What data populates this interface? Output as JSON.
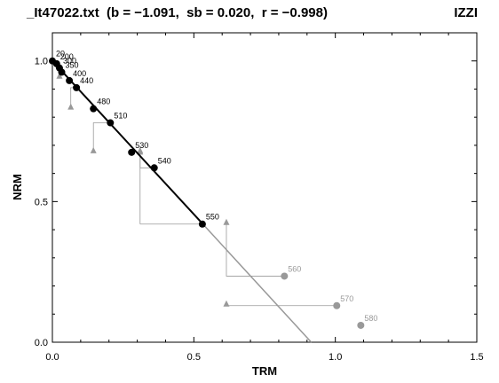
{
  "chart_data": {
    "type": "scatter",
    "title": "_It47022.txt  (b = −1.091,  sb = 0.020,  r = −0.998)",
    "method": "IZZI",
    "xlabel": "TRM",
    "ylabel": "NRM",
    "xlim": [
      0,
      1.5
    ],
    "ylim": [
      0,
      1.1
    ],
    "xticks": [
      0.0,
      0.5,
      1.0,
      1.5
    ],
    "xtick_labels": [
      "0.0",
      "0.5",
      "1.0",
      "1.5"
    ],
    "yticks": [
      0.0,
      0.5,
      1.0
    ],
    "ytick_labels": [
      "0.0",
      "0.5",
      "1.0"
    ],
    "colors": {
      "primary": "#000000",
      "secondary": "#999999"
    },
    "points": [
      {
        "label": "20",
        "x": 0.0,
        "y": 1.0,
        "used": true
      },
      {
        "label": "200",
        "x": 0.015,
        "y": 0.99,
        "used": true
      },
      {
        "label": "300",
        "x": 0.025,
        "y": 0.975,
        "used": true
      },
      {
        "label": "350",
        "x": 0.033,
        "y": 0.96,
        "used": true
      },
      {
        "label": "400",
        "x": 0.06,
        "y": 0.93,
        "used": true
      },
      {
        "label": "440",
        "x": 0.085,
        "y": 0.905,
        "used": true
      },
      {
        "label": "480",
        "x": 0.145,
        "y": 0.83,
        "used": true
      },
      {
        "label": "510",
        "x": 0.205,
        "y": 0.78,
        "used": true
      },
      {
        "label": "530",
        "x": 0.28,
        "y": 0.675,
        "used": true
      },
      {
        "label": "540",
        "x": 0.36,
        "y": 0.62,
        "used": true
      },
      {
        "label": "550",
        "x": 0.53,
        "y": 0.42,
        "used": true
      },
      {
        "label": "560",
        "x": 0.82,
        "y": 0.235,
        "used": false
      },
      {
        "label": "570",
        "x": 1.005,
        "y": 0.13,
        "used": false
      },
      {
        "label": "580",
        "x": 1.09,
        "y": 0.06,
        "used": false
      }
    ],
    "ptrm_checks": [
      {
        "from_x": 0.02,
        "from_y": 0.975,
        "x": 0.025,
        "y": 0.94
      },
      {
        "from_x": 0.085,
        "from_y": 0.905,
        "x": 0.065,
        "y": 0.83
      },
      {
        "from_x": 0.205,
        "from_y": 0.78,
        "x": 0.145,
        "y": 0.675
      },
      {
        "from_x": 0.36,
        "from_y": 0.62,
        "x": 0.31,
        "y": 0.67
      },
      {
        "from_x": 0.53,
        "from_y": 0.42,
        "x": 0.31,
        "y": 0.42,
        "tx": 0.31,
        "ty": 0.675
      },
      {
        "from_x": 0.82,
        "from_y": 0.235,
        "x": 0.615,
        "y": 0.42
      },
      {
        "from_x": 1.005,
        "from_y": 0.13,
        "x": 0.615,
        "y": 0.13
      }
    ],
    "fit_line": {
      "x0": 0.0,
      "y0": 1.0,
      "x1": 0.53,
      "y1": 0.422
    },
    "ext_line": {
      "x0": 0.53,
      "y0": 0.422,
      "x1": 0.915,
      "y1": 0.0
    }
  }
}
